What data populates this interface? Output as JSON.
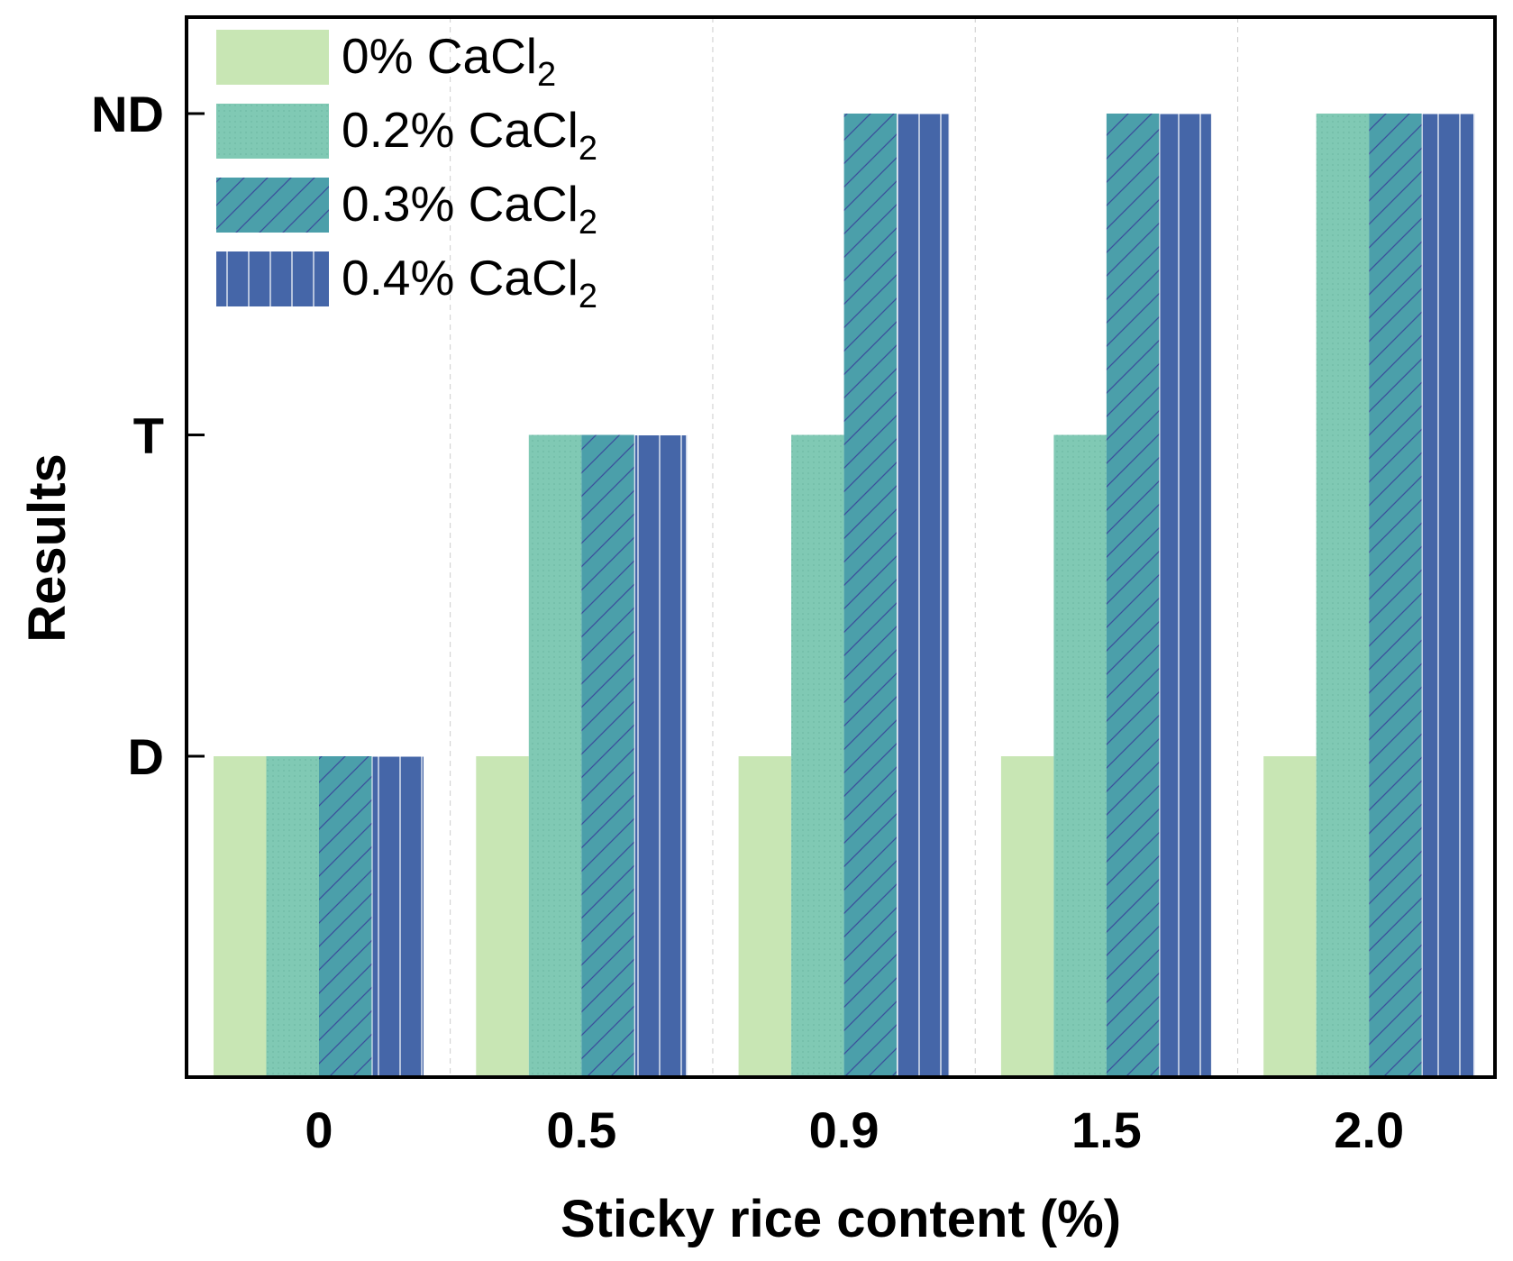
{
  "chart_data": {
    "type": "bar",
    "title": "",
    "xlabel": "Sticky rice content (%)",
    "ylabel": "Results",
    "categories": [
      "0",
      "0.5",
      "0.9",
      "1.5",
      "2.0"
    ],
    "y_levels": [
      "D",
      "T",
      "ND"
    ],
    "ylim": [
      -1,
      2.2
    ],
    "grid": "vertical dashed separators between groups",
    "legend_position": "top-left",
    "series": [
      {
        "name": "0% CaCl",
        "subscript": "2",
        "values": [
          0,
          0,
          0,
          0,
          0
        ],
        "color": "#c8e6b4",
        "pattern": "solid"
      },
      {
        "name": "0.2% CaCl",
        "subscript": "2",
        "values": [
          0,
          1,
          1,
          1,
          2
        ],
        "color": "#80c9b4",
        "pattern": "dots"
      },
      {
        "name": "0.3% CaCl",
        "subscript": "2",
        "values": [
          0,
          1,
          2,
          2,
          2
        ],
        "color": "#4b9faa",
        "pattern": "diagonal"
      },
      {
        "name": "0.4% CaCl",
        "subscript": "2",
        "values": [
          0,
          1,
          2,
          2,
          2
        ],
        "color": "#4566a8",
        "pattern": "vertical"
      }
    ]
  }
}
